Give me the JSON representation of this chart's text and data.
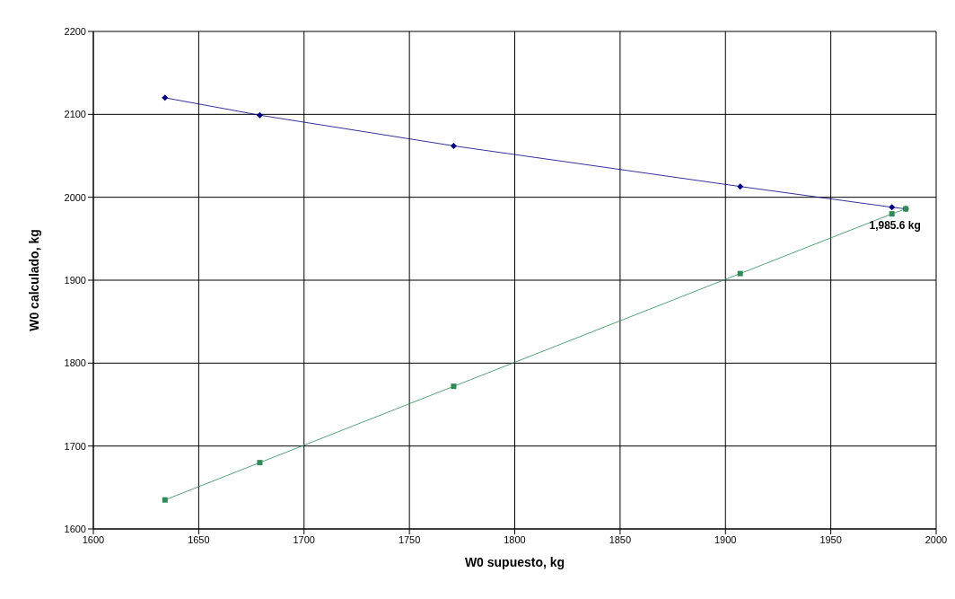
{
  "chart_data": {
    "type": "line",
    "xlabel": "W0 supuesto, kg",
    "ylabel": "W0 calculado, kg",
    "x": [
      1634,
      1679,
      1771,
      1907,
      1979,
      1985.6
    ],
    "series": [
      {
        "color": "#000080",
        "marker": "diamond",
        "values": [
          2120,
          2099,
          2062,
          2013,
          1988,
          1986
        ]
      },
      {
        "color": "#2e8b57",
        "marker": "square",
        "values": [
          1635,
          1680,
          1772,
          1908,
          1980,
          1986
        ]
      }
    ],
    "xlim": [
      1600,
      2000
    ],
    "xticks": [
      1600,
      1650,
      1700,
      1750,
      1800,
      1850,
      1900,
      1950,
      2000
    ],
    "ylim": [
      1600,
      2200
    ],
    "yticks": [
      1600,
      1700,
      1800,
      1900,
      2000,
      2100,
      2200
    ],
    "grid": true,
    "line_style": "solid",
    "annotations": [
      {
        "text": "1,985.6 kg",
        "x": 1985.6,
        "y": 1986
      }
    ]
  }
}
